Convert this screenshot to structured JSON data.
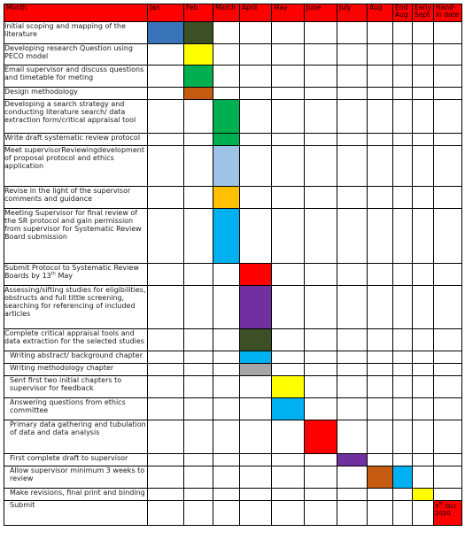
{
  "colors": {
    "header_bg": "#ff0000",
    "blue_dark": "#3a74b8",
    "olive": "#3c4f25",
    "yellow": "#ffff00",
    "green": "#00b050",
    "orange_brown": "#c55a11",
    "light_blue": "#9dc3e6",
    "amber": "#ffc000",
    "cyan": "#00b0f0",
    "red": "#ff0000",
    "purple": "#7030a0",
    "gray": "#a6a6a6"
  },
  "headers": {
    "task": "Month",
    "months": [
      "Jan",
      "Feb",
      "March",
      "April",
      "May",
      "June",
      "July",
      "Aug",
      "End Aug",
      "Early Sept",
      "Hand-in date"
    ]
  },
  "tasks": [
    {
      "label": "Initial scoping and mapping of the literature",
      "fills": [
        [
          0,
          "#3a74b8"
        ],
        [
          1,
          "#3c4f25"
        ]
      ]
    },
    {
      "label": "Developing research Question using PECO model",
      "fills": [
        [
          1,
          "#ffff00"
        ]
      ]
    },
    {
      "label": "Email supervisor and discuss questions and timetable for meting",
      "fills": [
        [
          1,
          "#00b050"
        ]
      ]
    },
    {
      "label": "Design methodology",
      "fills": [
        [
          1,
          "#c55a11"
        ]
      ]
    },
    {
      "label": "Developing a search strategy and conducting literature search/ data extraction form/critical appraisal tool",
      "fills": [
        [
          2,
          "#00b050"
        ]
      ]
    },
    {
      "label": "Write draft systematic review protocol",
      "fills": [
        [
          2,
          "#00b050"
        ]
      ]
    },
    {
      "label": "Meet supervisorReviewingdevelopment of proposal protocol and ethics application",
      "fills": [
        [
          2,
          "#9dc3e6"
        ]
      ]
    },
    {
      "label": "Revise in the light of the supervisor comments and guidance",
      "fills": [
        [
          2,
          "#ffc000"
        ]
      ]
    },
    {
      "label": "Meeting Supervisor for final review of the SR protocol and gain permission from supervisor for Systematic Review Board submission",
      "fills": [
        [
          2,
          "#00b0f0"
        ]
      ]
    },
    {
      "label": "Submit Protocol to Systematic Review Boards by 13",
      "sup": "th",
      "label_after": " May",
      "fills": [
        [
          3,
          "#ff0000"
        ]
      ]
    },
    {
      "label": "Assessing/sifting studies for eligibilities, obstructs and full tittle screening, searching for referencing of included articles",
      "fills": [
        [
          3,
          "#7030a0"
        ]
      ]
    },
    {
      "label": "Complete critical appraisal  tools and data extraction for the selected studies",
      "fills": [
        [
          3,
          "#3c4f25"
        ]
      ]
    },
    {
      "label": "Writing abstract/ background chapter",
      "indent": true,
      "fills": [
        [
          3,
          "#00b0f0"
        ]
      ]
    },
    {
      "label": "Writing methodology chapter",
      "indent": true,
      "fills": [
        [
          3,
          "#a6a6a6"
        ]
      ]
    },
    {
      "label": "Sent first two initial chapters to supervisor for feedback",
      "indent": true,
      "fills": [
        [
          4,
          "#ffff00"
        ]
      ]
    },
    {
      "label": "Answering questions from ethics committee",
      "indent": true,
      "fills": [
        [
          4,
          "#00b0f0"
        ]
      ]
    },
    {
      "label": "Primary data gathering and tubulation of data and data analysis",
      "indent": true,
      "fills": [
        [
          5,
          "#ff0000"
        ]
      ]
    },
    {
      "label": "First complete draft to supervisor",
      "indent": true,
      "fills": [
        [
          6,
          "#7030a0"
        ]
      ]
    },
    {
      "label": "Allow supervisor minimum 3 weeks to review",
      "indent": true,
      "fills": [
        [
          7,
          "#c55a11"
        ],
        [
          8,
          "#00b0f0"
        ]
      ]
    },
    {
      "label": "Make revisions, final print and binding",
      "indent": true,
      "fills": [
        [
          9,
          "#ffff00"
        ]
      ]
    },
    {
      "label": "Submit",
      "indent": true,
      "fills": [
        [
          10,
          "#ff0000"
        ]
      ],
      "cell_text": {
        "col": 10,
        "pre": "5",
        "sup": "th",
        "post": " Oct 2020"
      }
    }
  ]
}
